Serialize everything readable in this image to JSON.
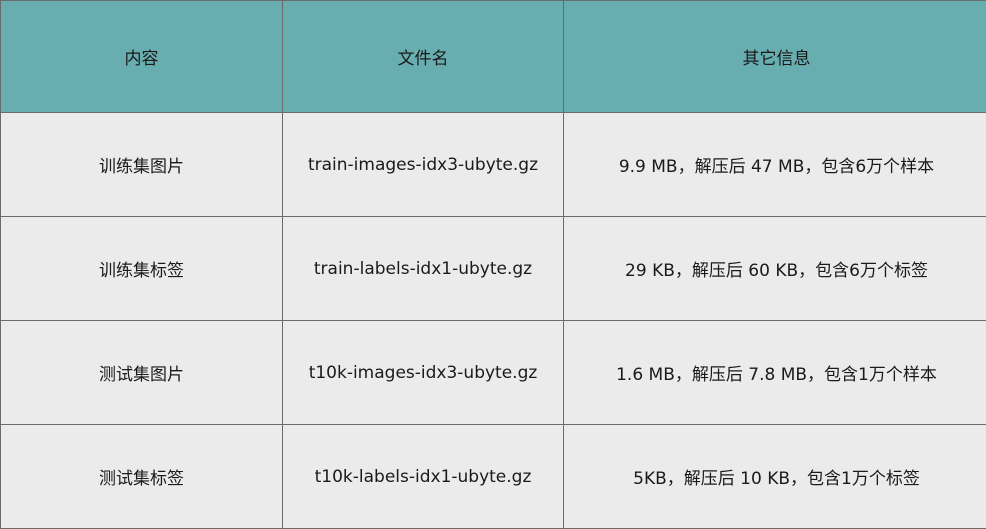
{
  "colors": {
    "header_bg": "#68adb0",
    "row_bg": "#ebebeb",
    "border": "#6b6b6b"
  },
  "headers": [
    "内容",
    "文件名",
    "其它信息"
  ],
  "rows": [
    [
      "训练集图片",
      "train-images-idx3-ubyte.gz",
      "9.9 MB，解压后 47 MB，包含6万个样本"
    ],
    [
      "训练集标签",
      "train-labels-idx1-ubyte.gz",
      "29 KB，解压后 60 KB，包含6万个标签"
    ],
    [
      "测试集图片",
      "t10k-images-idx3-ubyte.gz",
      "1.6 MB，解压后 7.8 MB，包含1万个样本"
    ],
    [
      "测试集标签",
      "t10k-labels-idx1-ubyte.gz",
      "5KB，解压后 10 KB，包含1万个标签"
    ]
  ]
}
